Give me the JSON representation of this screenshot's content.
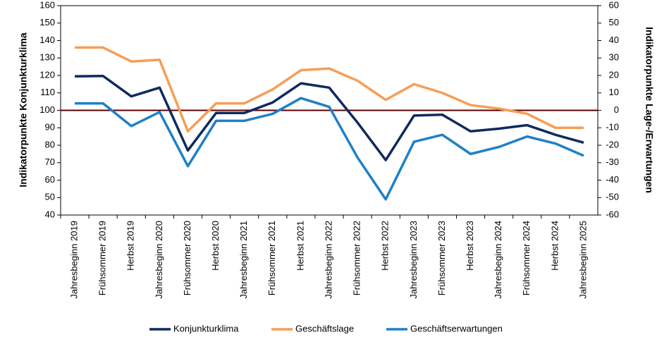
{
  "chart_data": {
    "type": "line",
    "y_label": "Indikatorpunkte Konjunkturklima",
    "y2_label": "Indikatorpunkte Lage-/Erwartungen",
    "categories": [
      "Jahresbeginn 2019",
      "Frühsommer 2019",
      "Herbst 2019",
      "Jahresbeginn 2020",
      "Frühsommer 2020",
      "Herbst 2020",
      "Jahresbeginn 2021",
      "Frühsommer 2021",
      "Herbst 2021",
      "Jahresbeginn 2022",
      "Frühsommer 2022",
      "Herbst 2022",
      "Jahresbeginn 2023",
      "Frühsommer 2023",
      "Herbst 2023",
      "Jahresbeginn 2024",
      "Frühsommer 2024",
      "Herbst 2024",
      "Jahresbeginn 2025"
    ],
    "series": [
      {
        "name": "Konjunkturklima",
        "color": "#0f2a5f",
        "values": [
          119.5,
          119.7,
          108,
          113,
          77,
          98.5,
          98.5,
          104.5,
          115.5,
          113,
          93,
          71.5,
          97,
          97.5,
          88,
          89.5,
          91.5,
          86,
          81.5
        ]
      },
      {
        "name": "Geschäftslage",
        "color": "#f79d55",
        "axis": "y2",
        "values": [
          36,
          36,
          28,
          29,
          -12,
          4,
          4,
          12,
          23,
          24,
          17,
          6,
          15,
          10,
          3,
          1,
          -2,
          -10,
          -10
        ]
      },
      {
        "name": "Geschäftserwartungen",
        "color": "#1f80c6",
        "axis": "y2",
        "values": [
          4,
          4,
          -9,
          -1,
          -32,
          -6,
          -6,
          -2,
          7,
          2,
          -27,
          -51,
          -18,
          -14,
          -25,
          -21,
          -15,
          -19,
          -26
        ]
      }
    ],
    "reference_line": {
      "value": 100,
      "color": "#5a0000"
    },
    "ylim": [
      40,
      160
    ],
    "yticks": [
      40,
      50,
      60,
      70,
      80,
      90,
      100,
      110,
      120,
      130,
      140,
      150,
      160
    ],
    "y2lim": [
      -60,
      60
    ],
    "y2ticks": [
      -60,
      -50,
      -40,
      -30,
      -20,
      -10,
      0,
      10,
      20,
      30,
      40,
      50,
      60
    ]
  }
}
